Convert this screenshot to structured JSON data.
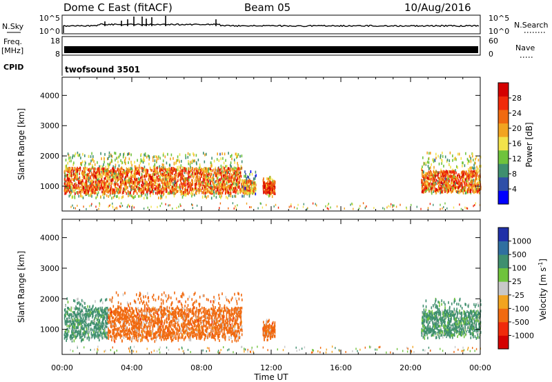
{
  "header": {
    "radar": "Dome C East (fitACF)",
    "beam": "Beam 05",
    "date": "10/Aug/2016"
  },
  "top_panels": {
    "nsky_label": "N.Sky",
    "nsky_ticks": [
      "10^5",
      "10^0"
    ],
    "nsearch_label": "N.Search",
    "nsearch_ticks": [
      "10^5",
      "10^0"
    ],
    "freq_label": "Freq.",
    "freq_unit": "[MHz]",
    "freq_ticks": [
      "18",
      "8"
    ],
    "nave_label": "Nave",
    "nave_ticks": [
      "60",
      "0"
    ],
    "cpid_label": "CPID",
    "cpid_value": "twofsound 3501"
  },
  "x_axis": {
    "label": "Time UT",
    "ticks": [
      "00:00",
      "04:00",
      "08:00",
      "12:00",
      "16:00",
      "20:00",
      "00:00"
    ]
  },
  "colors": {
    "power_scale": [
      "#0000ff",
      "#2f4fa8",
      "#3f8f6f",
      "#6fc33c",
      "#f2e24a",
      "#f2a420",
      "#f06a10",
      "#f02a0a",
      "#d40000"
    ],
    "velocity_scale": [
      "#d40000",
      "#f02a0a",
      "#f06a10",
      "#f2a420",
      "#c8c8c8",
      "#6fc33c",
      "#3f8f6f",
      "#2f6fa0",
      "#2030a8"
    ]
  },
  "chart_data": [
    {
      "type": "heatmap",
      "title": "",
      "ylabel": "Slant Range [km]",
      "xlabel": "",
      "x_unit": "hours UT",
      "xlim": [
        0,
        24
      ],
      "ylim": [
        180,
        4600
      ],
      "y_ticks": [
        1000,
        2000,
        3000,
        4000
      ],
      "colorbar": {
        "label": "Power [dB]",
        "range": [
          0,
          32
        ],
        "ticks": [
          "4",
          "8",
          "12",
          "16",
          "20",
          "24",
          "28"
        ]
      },
      "scatter_regions": [
        {
          "x": [
            0.1,
            10.3
          ],
          "range": [
            600,
            2100
          ],
          "core_range": [
            750,
            1600
          ],
          "value": 20
        },
        {
          "x": [
            10.3,
            11.1
          ],
          "range": [
            650,
            1500
          ],
          "core_range": [
            750,
            1200
          ],
          "value": 16
        },
        {
          "x": [
            11.5,
            12.2
          ],
          "range": [
            650,
            1300
          ],
          "core_range": [
            750,
            1150
          ],
          "value": 24
        },
        {
          "x": [
            20.6,
            24.0
          ],
          "range": [
            750,
            2100
          ],
          "core_range": [
            800,
            1500
          ],
          "value": 20
        }
      ]
    },
    {
      "type": "heatmap",
      "title": "",
      "ylabel": "Slant Range [km]",
      "xlabel": "Time UT",
      "x_unit": "hours UT",
      "xlim": [
        0,
        24
      ],
      "ylim": [
        180,
        4600
      ],
      "y_ticks": [
        1000,
        2000,
        3000,
        4000
      ],
      "colorbar": {
        "label": "Velocity [m s-1]",
        "label_main": "Velocity [m s",
        "label_sup": "-1",
        "label_end": "]",
        "ticks": [
          "1000",
          "500",
          "100",
          "25",
          "-25",
          "-100",
          "-500",
          "-1000"
        ]
      },
      "scatter_regions": [
        {
          "x": [
            0.1,
            2.6
          ],
          "range": [
            600,
            2000
          ],
          "core_range": [
            700,
            1700
          ],
          "velocity": 200
        },
        {
          "x": [
            2.6,
            10.3
          ],
          "range": [
            600,
            2200
          ],
          "core_range": [
            700,
            1700
          ],
          "velocity": -300
        },
        {
          "x": [
            11.5,
            12.2
          ],
          "range": [
            650,
            1300
          ],
          "core_range": [
            750,
            1150
          ],
          "velocity": -300
        },
        {
          "x": [
            20.6,
            24.0
          ],
          "range": [
            700,
            2000
          ],
          "core_range": [
            800,
            1600
          ],
          "velocity": 200
        }
      ]
    }
  ]
}
